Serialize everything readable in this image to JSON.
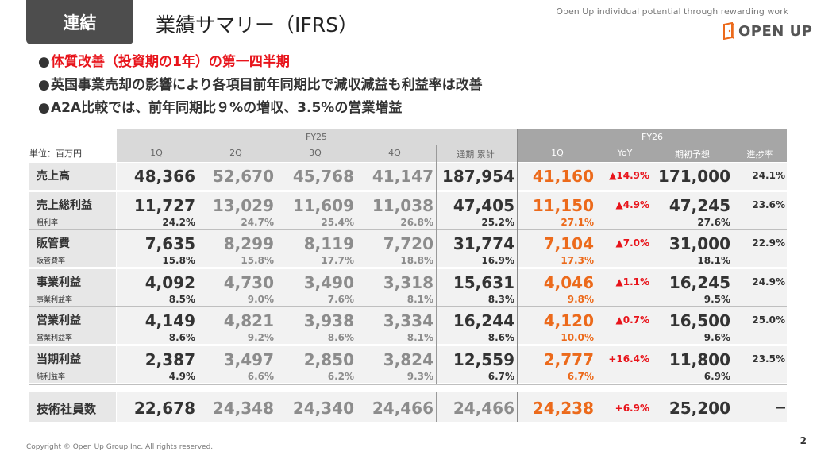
{
  "header": {
    "tag": "連結",
    "title": "業績サマリー（IFRS）",
    "tagline": "Open Up individual potential through rewarding work",
    "logo_text": "OPEN UP"
  },
  "bullets": [
    "体質改善（投資期の1年）の第一四半期",
    "英国事業売却の影響により各項目前年同期比で減収減益も利益率は改善",
    "A2A比較では、前年同期比９%の増収、3.5%の営業増益"
  ],
  "bullet_marker": "●",
  "table": {
    "unit": "単位：百万円",
    "fy25_label": "FY25",
    "fy26_label": "FY26",
    "columns": [
      "1Q",
      "2Q",
      "3Q",
      "4Q",
      "通期 累計",
      "1Q",
      "YoY",
      "期初予想",
      "進捗率"
    ],
    "rows": [
      {
        "label": "売上高",
        "sub": "",
        "values": [
          "48,366",
          "52,670",
          "45,768",
          "41,147",
          "187,954",
          "41,160",
          "▲14.9%",
          "171,000",
          "24.1%"
        ],
        "subvalues": []
      },
      {
        "label": "売上総利益",
        "sub": "粗利率",
        "values": [
          "11,727",
          "13,029",
          "11,609",
          "11,038",
          "47,405",
          "11,150",
          "▲4.9%",
          "47,245",
          "23.6%"
        ],
        "subvalues": [
          "24.2%",
          "24.7%",
          "25.4%",
          "26.8%",
          "25.2%",
          "27.1%",
          "",
          "27.6%",
          ""
        ]
      },
      {
        "label": "販管費",
        "sub": "販管費率",
        "values": [
          "7,635",
          "8,299",
          "8,119",
          "7,720",
          "31,774",
          "7,104",
          "▲7.0%",
          "31,000",
          "22.9%"
        ],
        "subvalues": [
          "15.8%",
          "15.8%",
          "17.7%",
          "18.8%",
          "16.9%",
          "17.3%",
          "",
          "18.1%",
          ""
        ]
      },
      {
        "label": "事業利益",
        "sub": "事業利益率",
        "values": [
          "4,092",
          "4,730",
          "3,490",
          "3,318",
          "15,631",
          "4,046",
          "▲1.1%",
          "16,245",
          "24.9%"
        ],
        "subvalues": [
          "8.5%",
          "9.0%",
          "7.6%",
          "8.1%",
          "8.3%",
          "9.8%",
          "",
          "9.5%",
          ""
        ]
      },
      {
        "label": "営業利益",
        "sub": "営業利益率",
        "values": [
          "4,149",
          "4,821",
          "3,938",
          "3,334",
          "16,244",
          "4,120",
          "▲0.7%",
          "16,500",
          "25.0%"
        ],
        "subvalues": [
          "8.6%",
          "9.2%",
          "8.6%",
          "8.1%",
          "8.6%",
          "10.0%",
          "",
          "9.6%",
          ""
        ]
      },
      {
        "label": "当期利益",
        "sub": "純利益率",
        "values": [
          "2,387",
          "3,497",
          "2,850",
          "3,824",
          "12,559",
          "2,777",
          "+16.4%",
          "11,800",
          "23.5%"
        ],
        "subvalues": [
          "4.9%",
          "6.6%",
          "6.2%",
          "9.3%",
          "6.7%",
          "6.7%",
          "",
          "6.9%",
          ""
        ]
      }
    ],
    "engineers": {
      "label": "技術社員数",
      "values": [
        "22,678",
        "24,348",
        "24,340",
        "24,466",
        "24,466",
        "24,238",
        "+6.9%",
        "25,200",
        "―"
      ]
    }
  },
  "footer": {
    "copyright": "Copyright © Open Up Group Inc. All rights reserved.",
    "page_number": "2"
  },
  "colors": {
    "accent_red": "#e8141b",
    "accent_orange": "#ec6a1b",
    "header_gray": "#4d4d4d"
  }
}
